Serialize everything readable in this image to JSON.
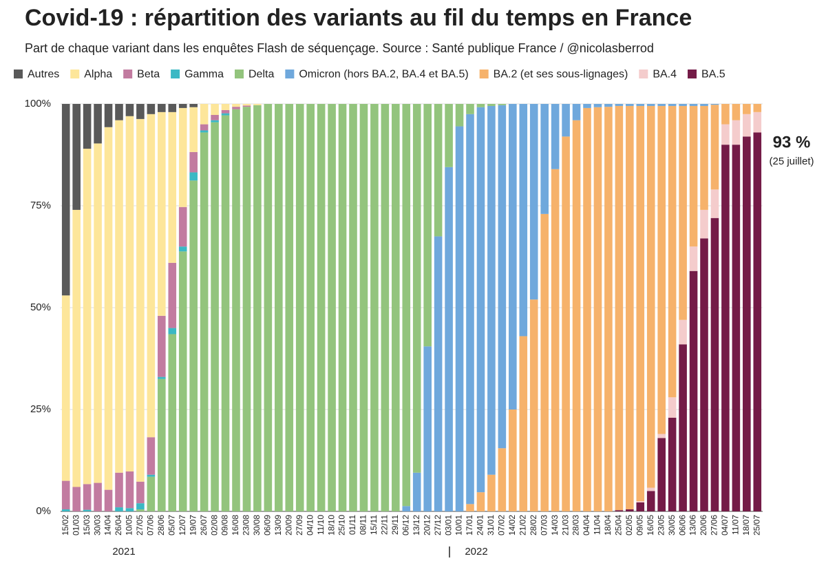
{
  "chart_data": {
    "type": "stacked_bar",
    "title": "Covid-19 : répartition des variants au fil du temps en France",
    "subtitle": "Part de chaque variant dans les enquêtes Flash de séquençage. Source : Santé publique France / @nicolasberrod",
    "categories": [
      "15/02",
      "01/03",
      "15/03",
      "30/03",
      "14/04",
      "26/04",
      "10/05",
      "27/05",
      "07/06",
      "28/06",
      "05/07",
      "12/07",
      "19/07",
      "26/07",
      "02/08",
      "09/08",
      "16/08",
      "23/08",
      "30/08",
      "06/09",
      "13/09",
      "20/09",
      "27/09",
      "04/10",
      "11/10",
      "18/10",
      "25/10",
      "01/11",
      "08/11",
      "15/11",
      "22/11",
      "29/11",
      "06/12",
      "13/12",
      "20/12",
      "27/12",
      "03/01",
      "10/01",
      "17/01",
      "24/01",
      "31/01",
      "07/02",
      "14/02",
      "21/02",
      "28/02",
      "07/03",
      "14/03",
      "21/03",
      "28/03",
      "04/04",
      "11/04",
      "18/04",
      "25/04",
      "02/05",
      "09/05",
      "16/05",
      "23/05",
      "30/05",
      "06/06",
      "13/06",
      "20/06",
      "27/06",
      "04/07",
      "11/07",
      "18/07",
      "25/07"
    ],
    "year_labels": [
      "2021",
      "2022"
    ],
    "series": [
      {
        "name": "Autres",
        "color": "#595959",
        "values": [
          47,
          26,
          11,
          9.7,
          5.7,
          4,
          3,
          3.7,
          2.5,
          2,
          2,
          1,
          0.8,
          0,
          0,
          0,
          0,
          0,
          0,
          0,
          0,
          0,
          0,
          0,
          0,
          0,
          0,
          0,
          0,
          0,
          0,
          0,
          0,
          0,
          0,
          0,
          0,
          0,
          0,
          0,
          0,
          0,
          0,
          0,
          0,
          0,
          0,
          0,
          0,
          0,
          0,
          0,
          0,
          0,
          0,
          0,
          0,
          0,
          0,
          0,
          0,
          0,
          0,
          0,
          0,
          0
        ]
      },
      {
        "name": "Alpha",
        "color": "#fde69a",
        "values": [
          45.5,
          68,
          82.3,
          83.3,
          89,
          86.5,
          87.2,
          89,
          79.3,
          50,
          37,
          24.3,
          11,
          5,
          2.7,
          1.5,
          0.7,
          0.4,
          0.3,
          0,
          0,
          0,
          0,
          0,
          0,
          0,
          0,
          0,
          0,
          0,
          0,
          0,
          0,
          0,
          0,
          0,
          0,
          0,
          0,
          0,
          0,
          0,
          0,
          0,
          0,
          0,
          0,
          0,
          0,
          0,
          0,
          0,
          0,
          0,
          0,
          0,
          0,
          0,
          0,
          0,
          0,
          0,
          0,
          0,
          0,
          0
        ]
      },
      {
        "name": "Beta",
        "color": "#c27ba0",
        "values": [
          7,
          6,
          6.3,
          7,
          5.3,
          8.5,
          9,
          5.3,
          9.2,
          15,
          16,
          9.7,
          5,
          1.5,
          1.3,
          0.8,
          0.6,
          0.3,
          0,
          0,
          0,
          0,
          0,
          0,
          0,
          0,
          0,
          0,
          0,
          0,
          0,
          0,
          0,
          0,
          0,
          0,
          0,
          0,
          0,
          0,
          0,
          0,
          0,
          0,
          0,
          0,
          0,
          0,
          0,
          0,
          0,
          0,
          0,
          0,
          0,
          0,
          0,
          0,
          0,
          0,
          0,
          0,
          0,
          0,
          0,
          0
        ]
      },
      {
        "name": "Gamma",
        "color": "#3bb8c4",
        "values": [
          0.5,
          0,
          0.4,
          0,
          0,
          1,
          0.8,
          1.5,
          0.5,
          0.5,
          1.5,
          1.2,
          2,
          0.5,
          0.5,
          0.5,
          0,
          0,
          0,
          0,
          0,
          0,
          0,
          0,
          0,
          0,
          0,
          0,
          0,
          0,
          0,
          0,
          0,
          0,
          0,
          0,
          0,
          0,
          0,
          0,
          0,
          0,
          0,
          0,
          0,
          0,
          0,
          0,
          0,
          0,
          0,
          0,
          0,
          0,
          0,
          0,
          0,
          0,
          0,
          0,
          0,
          0,
          0,
          0,
          0,
          0
        ]
      },
      {
        "name": "Delta",
        "color": "#93c47d",
        "values": [
          0,
          0,
          0,
          0,
          0,
          0,
          0,
          0.5,
          8.5,
          32.5,
          43.5,
          63.8,
          81.2,
          93,
          95.5,
          97.2,
          98.7,
          99.3,
          99.7,
          100,
          100,
          100,
          100,
          100,
          100,
          100,
          100,
          100,
          100,
          100,
          100,
          100,
          98.7,
          90.5,
          59.5,
          32.5,
          15.5,
          5.5,
          2.5,
          0.8,
          0.5,
          0.3,
          0,
          0,
          0,
          0,
          0,
          0,
          0,
          0,
          0,
          0,
          0,
          0,
          0,
          0,
          0,
          0,
          0,
          0,
          0,
          0,
          0,
          0,
          0,
          0
        ]
      },
      {
        "name": "Omicron (hors BA.2, BA.4 et BA.5)",
        "color": "#6fa8dc",
        "values": [
          0,
          0,
          0,
          0,
          0,
          0,
          0,
          0,
          0,
          0,
          0,
          0,
          0,
          0,
          0,
          0,
          0,
          0,
          0,
          0,
          0,
          0,
          0,
          0,
          0,
          0,
          0,
          0,
          0,
          0,
          0,
          0,
          1.3,
          9.5,
          40.5,
          67.5,
          84.5,
          94.5,
          95.7,
          94.5,
          90.5,
          84.2,
          75,
          57,
          48,
          27,
          16,
          8,
          4,
          1,
          0.8,
          0.7,
          0.5,
          0.5,
          0.5,
          0.5,
          0.5,
          0.5,
          0.5,
          0.5,
          0.5,
          0.2,
          0,
          0,
          0,
          0
        ]
      },
      {
        "name": "BA.2 (et ses sous-lignages)",
        "color": "#f6b26b",
        "values": [
          0,
          0,
          0,
          0,
          0,
          0,
          0,
          0,
          0,
          0,
          0,
          0,
          0,
          0,
          0,
          0,
          0,
          0,
          0,
          0,
          0,
          0,
          0,
          0,
          0,
          0,
          0,
          0,
          0,
          0,
          0,
          0,
          0,
          0,
          0,
          0,
          0,
          0,
          1.8,
          4.7,
          9,
          15.5,
          25,
          43,
          52,
          73,
          84,
          92,
          96,
          99,
          99.2,
          99.3,
          99.2,
          99,
          97,
          93.7,
          80.5,
          71.5,
          52.5,
          34.5,
          25.5,
          20.8,
          5,
          4,
          2.5,
          2
        ]
      },
      {
        "name": "BA.4",
        "color": "#f4cccc",
        "values": [
          0,
          0,
          0,
          0,
          0,
          0,
          0,
          0,
          0,
          0,
          0,
          0,
          0,
          0,
          0,
          0,
          0,
          0,
          0,
          0,
          0,
          0,
          0,
          0,
          0,
          0,
          0,
          0,
          0,
          0,
          0,
          0,
          0,
          0,
          0,
          0,
          0,
          0,
          0,
          0,
          0,
          0,
          0,
          0,
          0,
          0,
          0,
          0,
          0,
          0,
          0,
          0,
          0,
          0,
          0.3,
          0.8,
          1,
          5,
          6,
          6,
          7,
          7,
          5,
          6,
          5.5,
          5
        ]
      },
      {
        "name": "BA.5",
        "color": "#741b47",
        "values": [
          0,
          0,
          0,
          0,
          0,
          0,
          0,
          0,
          0,
          0,
          0,
          0,
          0,
          0,
          0,
          0,
          0,
          0,
          0,
          0,
          0,
          0,
          0,
          0,
          0,
          0,
          0,
          0,
          0,
          0,
          0,
          0,
          0,
          0,
          0,
          0,
          0,
          0,
          0,
          0,
          0,
          0,
          0,
          0,
          0,
          0,
          0,
          0,
          0,
          0,
          0,
          0,
          0.3,
          0.5,
          2.2,
          5,
          18,
          23,
          41,
          59,
          67,
          72,
          90,
          90,
          92,
          93
        ]
      }
    ],
    "stack_order": "bottom_up_reversed",
    "ylim": [
      0,
      100
    ],
    "yticks": [
      {
        "value": 0,
        "label": "0%"
      },
      {
        "value": 25,
        "label": "25%"
      },
      {
        "value": 50,
        "label": "50%"
      },
      {
        "value": 75,
        "label": "75%"
      },
      {
        "value": 100,
        "label": "100%"
      }
    ],
    "grid": true,
    "annotation": {
      "value_label": "93 %",
      "note": "(25 juillet)"
    }
  }
}
